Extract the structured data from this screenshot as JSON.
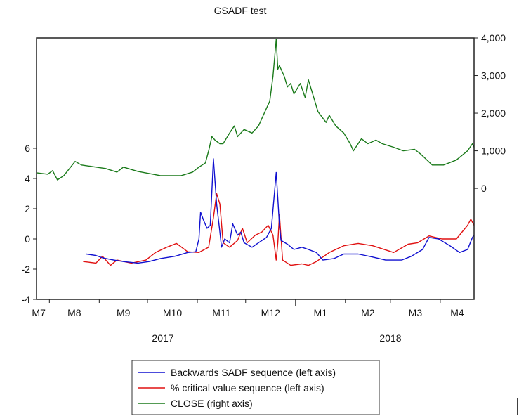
{
  "chart_data": {
    "type": "line",
    "title": "GSADF test",
    "x_range": [
      "2017-07-24",
      "2018-04-22"
    ],
    "x_month_labels": [
      {
        "label": "M7",
        "month": "2017-07"
      },
      {
        "label": "M8",
        "month": "2017-08"
      },
      {
        "label": "M9",
        "month": "2017-09"
      },
      {
        "label": "M10",
        "month": "2017-10"
      },
      {
        "label": "M11",
        "month": "2017-11"
      },
      {
        "label": "M12",
        "month": "2017-12"
      },
      {
        "label": "M1",
        "month": "2018-01"
      },
      {
        "label": "M2",
        "month": "2018-02"
      },
      {
        "label": "M3",
        "month": "2018-03"
      },
      {
        "label": "M4",
        "month": "2018-04"
      }
    ],
    "x_year_labels": [
      "2017",
      "2018"
    ],
    "left_axis": {
      "range": [
        -4,
        13.3
      ],
      "ticks": [
        -4,
        -2,
        0,
        2,
        4,
        6
      ]
    },
    "right_axis": {
      "range": [
        -2950,
        4000
      ],
      "ticks": [
        0,
        1000,
        2000,
        3000,
        4000
      ],
      "tick_labels": [
        "0",
        "1,000",
        "2,000",
        "3,000",
        "4,000"
      ]
    },
    "grid": false,
    "legend_placement": "bottom",
    "series": [
      {
        "name": "Backwards SADF sequence (left axis)",
        "axis": "left",
        "color": "#1010d0",
        "points": [
          [
            "2017-08-24",
            -1.0
          ],
          [
            "2017-08-30",
            -1.1
          ],
          [
            "2017-09-03",
            -1.25
          ],
          [
            "2017-09-10",
            -1.4
          ],
          [
            "2017-09-16",
            -1.5
          ],
          [
            "2017-09-25",
            -1.6
          ],
          [
            "2017-10-02",
            -1.5
          ],
          [
            "2017-10-09",
            -1.3
          ],
          [
            "2017-10-18",
            -1.15
          ],
          [
            "2017-10-26",
            -0.9
          ],
          [
            "2017-10-31",
            -0.85
          ],
          [
            "2017-11-02",
            0.0
          ],
          [
            "2017-11-03",
            1.77
          ],
          [
            "2017-11-05",
            1.2
          ],
          [
            "2017-11-07",
            0.7
          ],
          [
            "2017-11-09",
            0.9
          ],
          [
            "2017-11-11",
            5.3
          ],
          [
            "2017-11-13",
            2.3
          ],
          [
            "2017-11-15",
            0.45
          ],
          [
            "2017-11-16",
            -0.55
          ],
          [
            "2017-11-18",
            0.0
          ],
          [
            "2017-11-21",
            -0.25
          ],
          [
            "2017-11-23",
            1.0
          ],
          [
            "2017-11-26",
            0.25
          ],
          [
            "2017-11-28",
            0.45
          ],
          [
            "2017-11-30",
            -0.25
          ],
          [
            "2017-12-05",
            -0.55
          ],
          [
            "2017-12-09",
            -0.25
          ],
          [
            "2017-12-14",
            0.1
          ],
          [
            "2017-12-17",
            0.7
          ],
          [
            "2017-12-20",
            4.4
          ],
          [
            "2017-12-22",
            0.9
          ],
          [
            "2017-12-23",
            -0.1
          ],
          [
            "2017-12-27",
            -0.35
          ],
          [
            "2017-12-31",
            -0.7
          ],
          [
            "2018-01-05",
            -0.55
          ],
          [
            "2018-01-09",
            -0.7
          ],
          [
            "2018-01-14",
            -0.9
          ],
          [
            "2018-01-18",
            -1.4
          ],
          [
            "2018-01-25",
            -1.3
          ],
          [
            "2018-01-31",
            -1.0
          ],
          [
            "2018-02-09",
            -1.0
          ],
          [
            "2018-02-18",
            -1.2
          ],
          [
            "2018-02-26",
            -1.4
          ],
          [
            "2018-03-08",
            -1.4
          ],
          [
            "2018-03-14",
            -1.15
          ],
          [
            "2018-03-21",
            -0.7
          ],
          [
            "2018-03-25",
            0.1
          ],
          [
            "2018-03-31",
            0.0
          ],
          [
            "2018-04-07",
            -0.45
          ],
          [
            "2018-04-13",
            -0.9
          ],
          [
            "2018-04-18",
            -0.7
          ],
          [
            "2018-04-21",
            0.1
          ],
          [
            "2018-04-22",
            0.25
          ]
        ]
      },
      {
        "name": "% critical value sequence (left axis)",
        "axis": "left",
        "color": "#e01010",
        "points": [
          [
            "2017-08-22",
            -1.5
          ],
          [
            "2017-08-30",
            -1.6
          ],
          [
            "2017-09-03",
            -1.15
          ],
          [
            "2017-09-08",
            -1.75
          ],
          [
            "2017-09-12",
            -1.4
          ],
          [
            "2017-09-21",
            -1.6
          ],
          [
            "2017-09-30",
            -1.4
          ],
          [
            "2017-10-06",
            -0.9
          ],
          [
            "2017-10-13",
            -0.55
          ],
          [
            "2017-10-19",
            -0.3
          ],
          [
            "2017-10-26",
            -0.85
          ],
          [
            "2017-11-02",
            -0.9
          ],
          [
            "2017-11-08",
            -0.55
          ],
          [
            "2017-11-11",
            1.4
          ],
          [
            "2017-11-13",
            3.0
          ],
          [
            "2017-11-15",
            2.3
          ],
          [
            "2017-11-17",
            -0.25
          ],
          [
            "2017-11-21",
            -0.55
          ],
          [
            "2017-11-26",
            -0.1
          ],
          [
            "2017-11-29",
            0.7
          ],
          [
            "2017-12-02",
            -0.25
          ],
          [
            "2017-12-07",
            0.25
          ],
          [
            "2017-12-11",
            0.45
          ],
          [
            "2017-12-15",
            0.9
          ],
          [
            "2017-12-18",
            0.25
          ],
          [
            "2017-12-20",
            -1.4
          ],
          [
            "2017-12-21",
            -0.25
          ],
          [
            "2017-12-22",
            1.6
          ],
          [
            "2017-12-24",
            -1.4
          ],
          [
            "2017-12-29",
            -1.75
          ],
          [
            "2018-01-05",
            -1.65
          ],
          [
            "2018-01-09",
            -1.75
          ],
          [
            "2018-01-14",
            -1.5
          ],
          [
            "2018-01-22",
            -0.9
          ],
          [
            "2018-01-31",
            -0.45
          ],
          [
            "2018-02-09",
            -0.3
          ],
          [
            "2018-02-18",
            -0.45
          ],
          [
            "2018-03-03",
            -0.9
          ],
          [
            "2018-03-12",
            -0.35
          ],
          [
            "2018-03-18",
            -0.25
          ],
          [
            "2018-03-25",
            0.2
          ],
          [
            "2018-04-02",
            0.0
          ],
          [
            "2018-04-11",
            0.0
          ],
          [
            "2018-04-18",
            0.9
          ],
          [
            "2018-04-20",
            1.3
          ],
          [
            "2018-04-22",
            0.9
          ]
        ]
      },
      {
        "name": "CLOSE (right axis)",
        "axis": "right",
        "color": "#1a7a1a",
        "points": [
          [
            "2017-07-24",
            415
          ],
          [
            "2017-07-31",
            377
          ],
          [
            "2017-08-03",
            472
          ],
          [
            "2017-08-06",
            226
          ],
          [
            "2017-08-10",
            340
          ],
          [
            "2017-08-17",
            717
          ],
          [
            "2017-08-21",
            623
          ],
          [
            "2017-08-30",
            566
          ],
          [
            "2017-09-05",
            528
          ],
          [
            "2017-09-12",
            434
          ],
          [
            "2017-09-16",
            566
          ],
          [
            "2017-09-25",
            453
          ],
          [
            "2017-10-09",
            340
          ],
          [
            "2017-10-22",
            340
          ],
          [
            "2017-10-29",
            434
          ],
          [
            "2017-11-02",
            566
          ],
          [
            "2017-11-06",
            679
          ],
          [
            "2017-11-08",
            1000
          ],
          [
            "2017-11-10",
            1377
          ],
          [
            "2017-11-12",
            1283
          ],
          [
            "2017-11-15",
            1189
          ],
          [
            "2017-11-17",
            1189
          ],
          [
            "2017-11-21",
            1472
          ],
          [
            "2017-11-24",
            1660
          ],
          [
            "2017-11-26",
            1377
          ],
          [
            "2017-11-30",
            1566
          ],
          [
            "2017-12-05",
            1472
          ],
          [
            "2017-12-09",
            1660
          ],
          [
            "2017-12-13",
            2038
          ],
          [
            "2017-12-16",
            2321
          ],
          [
            "2017-12-18",
            2981
          ],
          [
            "2017-12-20",
            3962
          ],
          [
            "2017-12-21",
            3170
          ],
          [
            "2017-12-22",
            3264
          ],
          [
            "2017-12-25",
            2981
          ],
          [
            "2017-12-27",
            2698
          ],
          [
            "2017-12-29",
            2792
          ],
          [
            "2017-12-31",
            2509
          ],
          [
            "2018-01-04",
            2792
          ],
          [
            "2018-01-07",
            2415
          ],
          [
            "2018-01-09",
            2887
          ],
          [
            "2018-01-11",
            2604
          ],
          [
            "2018-01-15",
            2038
          ],
          [
            "2018-01-20",
            1755
          ],
          [
            "2018-01-22",
            1943
          ],
          [
            "2018-01-26",
            1660
          ],
          [
            "2018-01-31",
            1472
          ],
          [
            "2018-02-04",
            1189
          ],
          [
            "2018-02-06",
            1000
          ],
          [
            "2018-02-11",
            1321
          ],
          [
            "2018-02-15",
            1189
          ],
          [
            "2018-02-20",
            1283
          ],
          [
            "2018-02-24",
            1189
          ],
          [
            "2018-03-03",
            1094
          ],
          [
            "2018-03-09",
            1000
          ],
          [
            "2018-03-16",
            1038
          ],
          [
            "2018-03-20",
            906
          ],
          [
            "2018-03-27",
            623
          ],
          [
            "2018-04-03",
            623
          ],
          [
            "2018-04-11",
            755
          ],
          [
            "2018-04-18",
            1000
          ],
          [
            "2018-04-21",
            1189
          ],
          [
            "2018-04-22",
            1094
          ]
        ]
      }
    ]
  }
}
